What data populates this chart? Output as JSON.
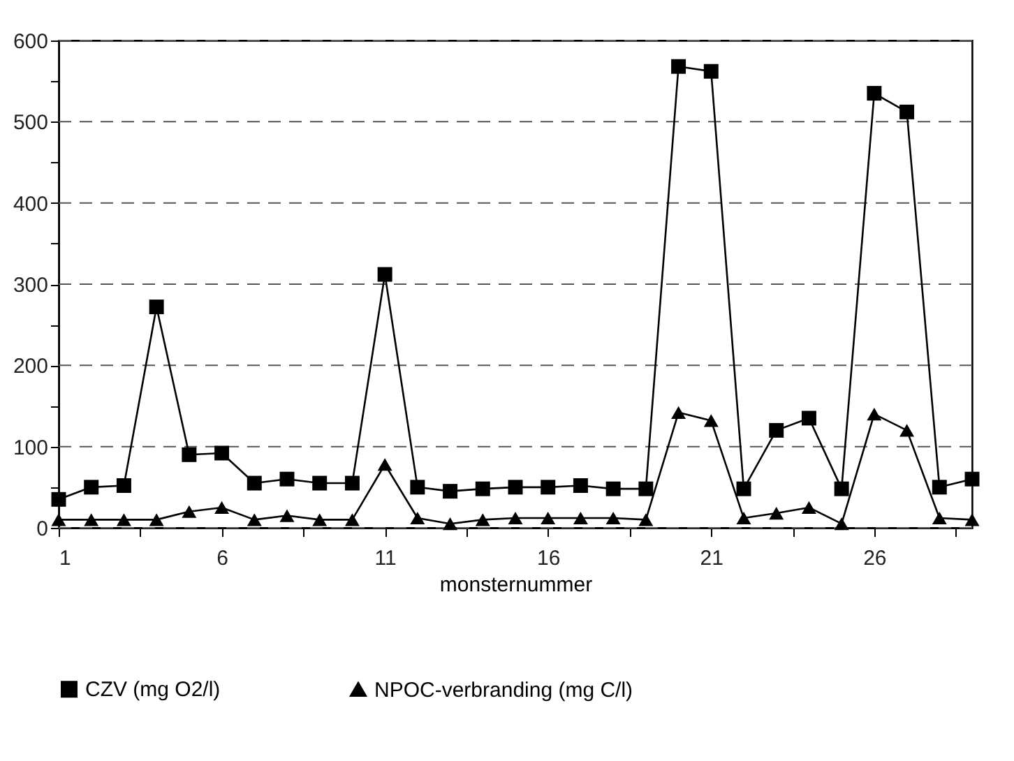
{
  "chart_data": {
    "type": "line",
    "xlabel": "monsternummer",
    "x": [
      1,
      2,
      3,
      4,
      5,
      6,
      7,
      8,
      9,
      10,
      11,
      12,
      13,
      14,
      15,
      16,
      17,
      18,
      19,
      20,
      21,
      22,
      23,
      24,
      25,
      26,
      27,
      28,
      29
    ],
    "series": [
      {
        "name": "CZV (mg O2/l)",
        "color": "#000000",
        "marker": "square",
        "values": [
          35,
          50,
          52,
          272,
          90,
          92,
          55,
          60,
          55,
          55,
          312,
          50,
          45,
          48,
          50,
          50,
          52,
          48,
          48,
          568,
          562,
          48,
          120,
          135,
          48,
          535,
          512,
          50,
          60
        ]
      },
      {
        "name": "NPOC-verbranding (mg C/l)",
        "color": "#000000",
        "marker": "triangle",
        "values": [
          10,
          10,
          10,
          10,
          20,
          25,
          10,
          15,
          10,
          10,
          78,
          12,
          5,
          10,
          12,
          12,
          12,
          12,
          10,
          142,
          132,
          12,
          18,
          25,
          5,
          140,
          120,
          12,
          10
        ]
      }
    ],
    "xlim": [
      1,
      29
    ],
    "xticks": [
      1,
      {
        "value": 3.5,
        "label": null
      },
      6,
      {
        "value": 8.5,
        "label": null
      },
      11,
      {
        "value": 13.5,
        "label": null
      },
      16,
      {
        "value": 18.5,
        "label": null
      },
      21,
      {
        "value": 23.5,
        "label": null
      },
      26,
      {
        "value": 28.5,
        "label": null
      }
    ],
    "ylim": [
      0,
      600
    ],
    "yticks": [
      0,
      {
        "value": 50,
        "label": null
      },
      100,
      {
        "value": 150,
        "label": null
      },
      200,
      {
        "value": 250,
        "label": null
      },
      300,
      {
        "value": 350,
        "label": null
      },
      400,
      {
        "value": 450,
        "label": null
      },
      500,
      {
        "value": 550,
        "label": null
      },
      600
    ],
    "grid": "y",
    "legend": "bottom",
    "line_style": "solid"
  }
}
